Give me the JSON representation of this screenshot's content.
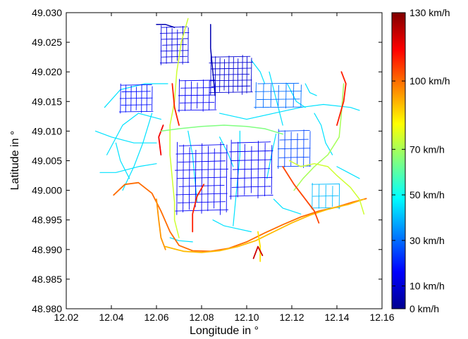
{
  "axes": {
    "xlabel": "Longitude in °",
    "ylabel": "Latitude in °",
    "xlim": [
      12.02,
      12.16
    ],
    "ylim": [
      48.98,
      49.03
    ],
    "x_ticks": [
      "12.02",
      "12.04",
      "12.06",
      "12.08",
      "12.10",
      "12.12",
      "12.14",
      "12.16"
    ],
    "y_ticks": [
      "48.980",
      "48.985",
      "48.990",
      "48.995",
      "49.000",
      "49.005",
      "49.010",
      "49.015",
      "49.020",
      "49.025",
      "49.030"
    ],
    "grid": false
  },
  "colorbar": {
    "min": 0,
    "max": 130,
    "unit": "km/h",
    "labels": [
      {
        "value": 0,
        "text": "0 km/h"
      },
      {
        "value": 10,
        "text": "10 km/h"
      },
      {
        "value": 30,
        "text": "30 km/h"
      },
      {
        "value": 50,
        "text": "50 km/h"
      },
      {
        "value": 70,
        "text": "70 km/h"
      },
      {
        "value": 100,
        "text": "100 km/h"
      },
      {
        "value": 130,
        "text": "130 km/h"
      }
    ],
    "palette": [
      "#00008f",
      "#0000ff",
      "#0080ff",
      "#00ffff",
      "#80ff80",
      "#ffff00",
      "#ff8000",
      "#ff0000",
      "#800000"
    ]
  },
  "map_data": {
    "type": "road-network-speed-map",
    "roads": [
      {
        "speed": 100,
        "points": [
          [
            12.041,
            48.9992
          ],
          [
            12.046,
            49.001
          ],
          [
            12.052,
            49.0013
          ],
          [
            12.058,
            48.9995
          ],
          [
            12.062,
            48.9965
          ],
          [
            12.066,
            48.993
          ],
          [
            12.07,
            48.9907
          ],
          [
            12.076,
            48.9898
          ],
          [
            12.084,
            48.9897
          ],
          [
            12.092,
            48.9902
          ],
          [
            12.1,
            48.9913
          ],
          [
            12.108,
            48.9928
          ],
          [
            12.116,
            48.9942
          ],
          [
            12.124,
            48.9955
          ],
          [
            12.132,
            48.9965
          ],
          [
            12.14,
            48.9972
          ],
          [
            12.147,
            48.998
          ],
          [
            12.153,
            48.9986
          ]
        ]
      },
      {
        "speed": 90,
        "points": [
          [
            12.064,
            48.9905
          ],
          [
            12.072,
            48.9897
          ],
          [
            12.08,
            48.9895
          ],
          [
            12.088,
            48.9898
          ],
          [
            12.096,
            48.9905
          ],
          [
            12.104,
            48.9915
          ],
          [
            12.112,
            48.993
          ],
          [
            12.12,
            48.9945
          ],
          [
            12.128,
            48.9958
          ],
          [
            12.136,
            48.9968
          ],
          [
            12.145,
            48.9976
          ],
          [
            12.152,
            48.9985
          ]
        ]
      },
      {
        "speed": 75,
        "points": [
          [
            12.074,
            49.029
          ],
          [
            12.071,
            49.025
          ],
          [
            12.069,
            49.02
          ],
          [
            12.068,
            49.015
          ],
          [
            12.066,
            49.011
          ],
          [
            12.066,
            49.006
          ],
          [
            12.067,
            49.002
          ],
          [
            12.068,
            48.998
          ],
          [
            12.068,
            48.995
          ],
          [
            12.07,
            48.992
          ]
        ]
      },
      {
        "speed": 110,
        "points": [
          [
            12.067,
            49.018
          ],
          [
            12.068,
            49.014
          ],
          [
            12.07,
            49.011
          ]
        ]
      },
      {
        "speed": 115,
        "points": [
          [
            12.063,
            49.011
          ],
          [
            12.061,
            49.009
          ],
          [
            12.062,
            49.006
          ]
        ]
      },
      {
        "speed": 110,
        "points": [
          [
            12.081,
            49.001
          ],
          [
            12.078,
            48.999
          ],
          [
            12.076,
            48.996
          ],
          [
            12.076,
            48.993
          ]
        ]
      },
      {
        "speed": 70,
        "points": [
          [
            12.143,
            49.018
          ],
          [
            12.142,
            49.013
          ],
          [
            12.141,
            49.009
          ],
          [
            12.136,
            49.006
          ],
          [
            12.13,
            49.004
          ],
          [
            12.125,
            49.002
          ],
          [
            12.121,
            49.0
          ]
        ]
      },
      {
        "speed": 110,
        "points": [
          [
            12.142,
            49.02
          ],
          [
            12.144,
            49.018
          ],
          [
            12.143,
            49.015
          ],
          [
            12.14,
            49.011
          ]
        ]
      },
      {
        "speed": 75,
        "points": [
          [
            12.119,
            49.005
          ],
          [
            12.124,
            49.004
          ],
          [
            12.13,
            49.0045
          ],
          [
            12.136,
            49.004
          ],
          [
            12.14,
            49.0025
          ],
          [
            12.146,
            49.0005
          ],
          [
            12.15,
            48.9985
          ],
          [
            12.152,
            48.996
          ]
        ]
      },
      {
        "speed": 65,
        "points": [
          [
            12.062,
            49.01
          ],
          [
            12.07,
            49.0104
          ],
          [
            12.08,
            49.0108
          ],
          [
            12.09,
            49.011
          ],
          [
            12.1,
            49.0108
          ],
          [
            12.108,
            49.0104
          ],
          [
            12.116,
            49.0095
          ]
        ]
      },
      {
        "speed": 105,
        "points": [
          [
            12.116,
            49.004
          ],
          [
            12.121,
            49.001
          ],
          [
            12.126,
            48.9985
          ],
          [
            12.13,
            48.9965
          ],
          [
            12.132,
            48.9945
          ]
        ]
      },
      {
        "speed": 85,
        "points": [
          [
            12.105,
            48.993
          ],
          [
            12.106,
            48.9905
          ],
          [
            12.106,
            48.988
          ]
        ]
      },
      {
        "speed": 120,
        "points": [
          [
            12.103,
            48.9885
          ],
          [
            12.105,
            48.9905
          ],
          [
            12.107,
            48.989
          ]
        ]
      },
      {
        "speed": 95,
        "points": [
          [
            12.06,
            48.9985
          ],
          [
            12.061,
            48.995
          ],
          [
            12.062,
            48.992
          ],
          [
            12.064,
            48.99
          ]
        ]
      },
      {
        "speed": 5,
        "points": [
          [
            12.084,
            49.028
          ],
          [
            12.084,
            49.024
          ],
          [
            12.085,
            49.02
          ],
          [
            12.086,
            49.016
          ]
        ]
      },
      {
        "speed": 5,
        "points": [
          [
            12.06,
            49.028
          ],
          [
            12.064,
            49.028
          ],
          [
            12.068,
            49.0275
          ]
        ]
      }
    ],
    "districts": [
      {
        "speed": 10,
        "cx": 12.093,
        "cy": 49.0195,
        "w": 0.018,
        "h": 0.006,
        "cols": 9,
        "rows": 6
      },
      {
        "speed": 15,
        "cx": 12.078,
        "cy": 49.016,
        "w": 0.016,
        "h": 0.005,
        "cols": 6,
        "rows": 4
      },
      {
        "speed": 12,
        "cx": 12.068,
        "cy": 49.0245,
        "w": 0.012,
        "h": 0.006,
        "cols": 5,
        "rows": 6
      },
      {
        "speed": 18,
        "cx": 12.051,
        "cy": 49.0155,
        "w": 0.014,
        "h": 0.0045,
        "cols": 6,
        "rows": 4
      },
      {
        "speed": 15,
        "cx": 12.08,
        "cy": 49.002,
        "w": 0.022,
        "h": 0.011,
        "cols": 8,
        "rows": 8
      },
      {
        "speed": 15,
        "cx": 12.102,
        "cy": 49.0035,
        "w": 0.018,
        "h": 0.009,
        "cols": 6,
        "rows": 6
      },
      {
        "speed": 25,
        "cx": 12.121,
        "cy": 49.007,
        "w": 0.014,
        "h": 0.006,
        "cols": 5,
        "rows": 4
      },
      {
        "speed": 30,
        "cx": 12.114,
        "cy": 49.016,
        "w": 0.02,
        "h": 0.004,
        "cols": 6,
        "rows": 3
      },
      {
        "speed": 40,
        "cx": 12.135,
        "cy": 48.999,
        "w": 0.012,
        "h": 0.004,
        "cols": 4,
        "rows": 2
      }
    ],
    "streets": [
      {
        "speed": 45,
        "points": [
          [
            12.033,
            49.01
          ],
          [
            12.04,
            49.009
          ],
          [
            12.05,
            49.008
          ],
          [
            12.06,
            49.008
          ]
        ]
      },
      {
        "speed": 45,
        "points": [
          [
            12.035,
            49.003
          ],
          [
            12.042,
            49.003
          ],
          [
            12.052,
            49.004
          ],
          [
            12.06,
            49.0045
          ]
        ]
      },
      {
        "speed": 45,
        "points": [
          [
            12.037,
            49.014
          ],
          [
            12.044,
            49.017
          ],
          [
            12.055,
            49.018
          ],
          [
            12.065,
            49.018
          ]
        ]
      },
      {
        "speed": 45,
        "points": [
          [
            12.038,
            49.006
          ],
          [
            12.045,
            49.011
          ],
          [
            12.052,
            49.013
          ],
          [
            12.062,
            49.012
          ]
        ]
      },
      {
        "speed": 45,
        "points": [
          [
            12.045,
            49.0
          ],
          [
            12.05,
            49.004
          ],
          [
            12.054,
            49.008
          ],
          [
            12.058,
            49.013
          ]
        ]
      },
      {
        "speed": 45,
        "points": [
          [
            12.088,
            49.013
          ],
          [
            12.1,
            49.012
          ],
          [
            12.112,
            49.013
          ],
          [
            12.124,
            49.014
          ],
          [
            12.134,
            49.0145
          ],
          [
            12.146,
            49.014
          ],
          [
            12.15,
            49.0135
          ]
        ]
      },
      {
        "speed": 45,
        "points": [
          [
            12.11,
            49.02
          ],
          [
            12.112,
            49.017
          ],
          [
            12.114,
            49.014
          ],
          [
            12.116,
            49.011
          ]
        ]
      },
      {
        "speed": 45,
        "points": [
          [
            12.118,
            49.018
          ],
          [
            12.122,
            49.015
          ],
          [
            12.126,
            49.014
          ]
        ]
      },
      {
        "speed": 45,
        "points": [
          [
            12.13,
            49.013
          ],
          [
            12.133,
            49.011
          ],
          [
            12.135,
            49.008
          ],
          [
            12.138,
            49.006
          ]
        ]
      },
      {
        "speed": 45,
        "points": [
          [
            12.097,
            49.01
          ],
          [
            12.097,
            49.006
          ],
          [
            12.096,
            49.002
          ],
          [
            12.095,
            48.998
          ],
          [
            12.094,
            48.994
          ]
        ]
      },
      {
        "speed": 45,
        "points": [
          [
            12.088,
            49.009
          ],
          [
            12.092,
            49.006
          ],
          [
            12.094,
            49.004
          ]
        ]
      },
      {
        "speed": 45,
        "points": [
          [
            12.074,
            49.01
          ],
          [
            12.076,
            49.006
          ],
          [
            12.077,
            49.002
          ],
          [
            12.078,
            48.998
          ]
        ]
      },
      {
        "speed": 45,
        "points": [
          [
            12.085,
            48.995
          ],
          [
            12.09,
            48.994
          ],
          [
            12.096,
            48.9935
          ],
          [
            12.102,
            48.993
          ]
        ]
      },
      {
        "speed": 45,
        "points": [
          [
            12.112,
            48.9985
          ],
          [
            12.116,
            48.997
          ],
          [
            12.12,
            48.9965
          ],
          [
            12.124,
            48.996
          ]
        ]
      },
      {
        "speed": 45,
        "points": [
          [
            12.066,
            48.992
          ],
          [
            12.07,
            48.9915
          ],
          [
            12.076,
            48.9913
          ]
        ]
      },
      {
        "speed": 45,
        "points": [
          [
            12.14,
            49.004
          ],
          [
            12.145,
            49.003
          ],
          [
            12.15,
            49.002
          ]
        ]
      },
      {
        "speed": 45,
        "points": [
          [
            12.102,
            49.022
          ],
          [
            12.106,
            49.02
          ],
          [
            12.108,
            49.018
          ]
        ]
      },
      {
        "speed": 45,
        "points": [
          [
            12.126,
            49.018
          ],
          [
            12.128,
            49.0165
          ],
          [
            12.131,
            49.016
          ]
        ]
      },
      {
        "speed": 45,
        "points": [
          [
            12.042,
            49.008
          ],
          [
            12.044,
            49.005
          ],
          [
            12.048,
            49.002
          ]
        ]
      },
      {
        "speed": 45,
        "points": [
          [
            12.109,
            49.002
          ],
          [
            12.111,
            49.006
          ],
          [
            12.113,
            49.0095
          ]
        ]
      }
    ]
  }
}
